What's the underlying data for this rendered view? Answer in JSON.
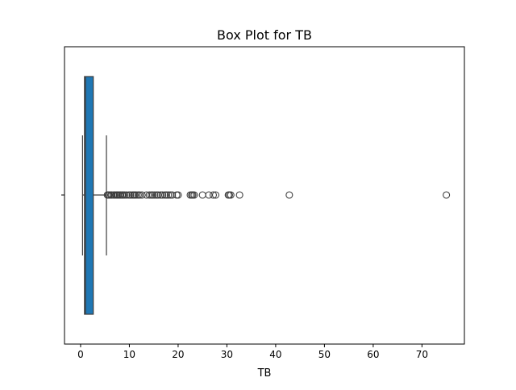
{
  "chart_data": {
    "type": "box",
    "orientation": "horizontal",
    "title": "Box Plot for TB",
    "xlabel": "TB",
    "ylabel": "",
    "xlim": [
      -3.3,
      78.7
    ],
    "xticks": [
      0,
      10,
      20,
      30,
      40,
      50,
      60,
      70
    ],
    "box_color": "#1f77b4",
    "line_color": "#3d3d3d",
    "stats": {
      "whisker_low": 0.4,
      "q1": 0.8,
      "median": 1.0,
      "q3": 2.6,
      "whisker_high": 5.3
    },
    "outliers": [
      5.5,
      5.7,
      5.9,
      6.2,
      6.4,
      6.8,
      7.0,
      7.3,
      7.5,
      7.7,
      8.0,
      8.2,
      8.5,
      8.7,
      9.0,
      9.4,
      9.9,
      10.2,
      10.6,
      10.9,
      11.1,
      11.4,
      11.8,
      12.1,
      12.6,
      13.5,
      14.1,
      14.5,
      14.8,
      15.2,
      15.6,
      15.9,
      16.4,
      16.8,
      17.3,
      17.6,
      18.0,
      18.4,
      18.8,
      19.7,
      20.0,
      22.5,
      22.8,
      23.0,
      23.3,
      25.0,
      26.3,
      27.2,
      27.7,
      30.3,
      30.5,
      30.8,
      32.6,
      42.8,
      75.0
    ]
  }
}
